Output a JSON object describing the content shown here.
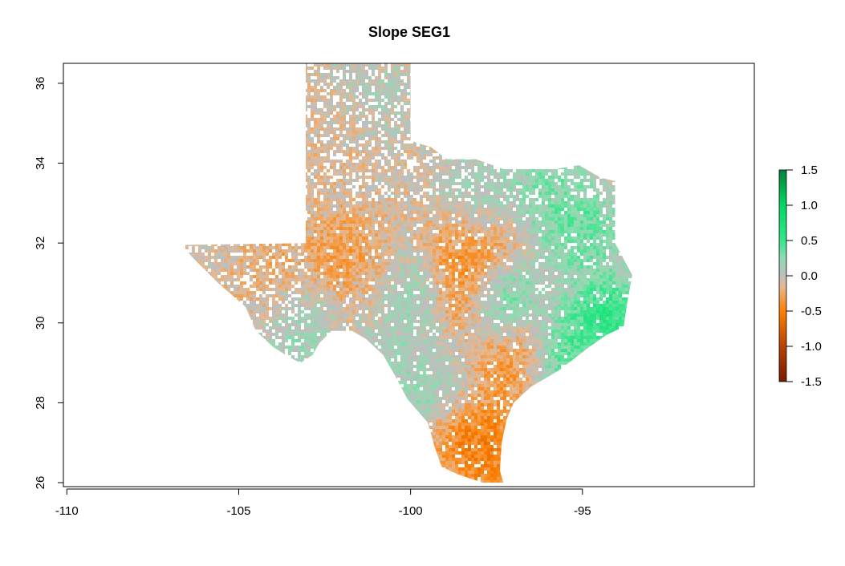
{
  "chart_data": {
    "type": "heatmap",
    "title": "Slope SEG1",
    "xlabel": "",
    "ylabel": "",
    "xlim": [
      -110.1,
      -90.0
    ],
    "ylim": [
      25.9,
      36.5
    ],
    "x_ticks": [
      -110,
      -105,
      -100,
      -95
    ],
    "x_tick_labels": [
      "-110",
      "-105",
      "-100",
      "-95"
    ],
    "y_ticks": [
      26,
      28,
      30,
      32,
      34,
      36
    ],
    "y_tick_labels": [
      "26",
      "28",
      "30",
      "32",
      "34",
      "36"
    ],
    "grid": false,
    "legend": {
      "placement": "right",
      "range": [
        -1.5,
        1.5
      ],
      "ticks": [
        1.5,
        1.0,
        0.5,
        0.0,
        -0.5,
        -1.0,
        -1.5
      ],
      "tick_labels": [
        "1.5",
        "1.0",
        "0.5",
        "0.0",
        "-0.5",
        "-1.0",
        "-1.5"
      ],
      "stops": [
        {
          "value": -1.5,
          "color": "#7a1a00"
        },
        {
          "value": -1.0,
          "color": "#b84300"
        },
        {
          "value": -0.5,
          "color": "#ff7f00"
        },
        {
          "value": -0.15,
          "color": "#e7b88f"
        },
        {
          "value": 0.0,
          "color": "#bebebe"
        },
        {
          "value": 0.25,
          "color": "#8fdcb0"
        },
        {
          "value": 0.5,
          "color": "#33e68a"
        },
        {
          "value": 1.0,
          "color": "#00d964"
        },
        {
          "value": 1.5,
          "color": "#00803a"
        }
      ]
    },
    "region_outline": [
      [
        -103.05,
        36.5
      ],
      [
        -100.0,
        36.5
      ],
      [
        -100.0,
        34.56
      ],
      [
        -99.4,
        34.4
      ],
      [
        -98.95,
        34.1
      ],
      [
        -98.1,
        34.1
      ],
      [
        -97.3,
        33.85
      ],
      [
        -96.6,
        33.85
      ],
      [
        -95.8,
        33.85
      ],
      [
        -95.1,
        33.95
      ],
      [
        -94.48,
        33.64
      ],
      [
        -94.05,
        33.55
      ],
      [
        -94.05,
        32.0
      ],
      [
        -93.8,
        31.6
      ],
      [
        -93.55,
        31.2
      ],
      [
        -93.7,
        30.5
      ],
      [
        -93.8,
        29.9
      ],
      [
        -94.3,
        29.7
      ],
      [
        -94.8,
        29.4
      ],
      [
        -95.7,
        28.8
      ],
      [
        -96.5,
        28.4
      ],
      [
        -97.0,
        28.0
      ],
      [
        -97.2,
        27.6
      ],
      [
        -97.35,
        27.0
      ],
      [
        -97.4,
        26.3
      ],
      [
        -97.3,
        26.0
      ],
      [
        -97.9,
        26.0
      ],
      [
        -98.6,
        26.2
      ],
      [
        -99.1,
        26.4
      ],
      [
        -99.3,
        26.9
      ],
      [
        -99.5,
        27.5
      ],
      [
        -100.1,
        28.1
      ],
      [
        -100.4,
        28.6
      ],
      [
        -100.8,
        29.2
      ],
      [
        -101.3,
        29.6
      ],
      [
        -101.7,
        29.8
      ],
      [
        -102.3,
        29.8
      ],
      [
        -102.65,
        29.5
      ],
      [
        -102.85,
        29.2
      ],
      [
        -103.2,
        29.0
      ],
      [
        -103.55,
        29.15
      ],
      [
        -104.0,
        29.4
      ],
      [
        -104.5,
        29.8
      ],
      [
        -104.8,
        30.4
      ],
      [
        -105.6,
        31.0
      ],
      [
        -106.3,
        31.6
      ],
      [
        -106.65,
        31.95
      ],
      [
        -103.05,
        32.0
      ],
      [
        -103.05,
        36.5
      ]
    ],
    "slope_hotspots": [
      {
        "lon": -98.0,
        "lat": 26.9,
        "value": -0.65
      },
      {
        "lon": -98.6,
        "lat": 30.7,
        "value": -0.6
      },
      {
        "lon": -98.1,
        "lat": 32.0,
        "value": -0.55
      },
      {
        "lon": -97.0,
        "lat": 29.1,
        "value": -0.55
      },
      {
        "lon": -102.0,
        "lat": 31.6,
        "value": -0.4
      },
      {
        "lon": -103.8,
        "lat": 31.0,
        "value": -0.35
      },
      {
        "lon": -99.5,
        "lat": 29.3,
        "value": -0.3
      },
      {
        "lon": -101.8,
        "lat": 35.0,
        "value": -0.2
      },
      {
        "lon": -100.9,
        "lat": 30.3,
        "value": -0.25
      },
      {
        "lon": -95.0,
        "lat": 32.3,
        "value": 0.5
      },
      {
        "lon": -94.3,
        "lat": 30.0,
        "value": 0.8
      },
      {
        "lon": -95.6,
        "lat": 29.0,
        "value": 0.6
      },
      {
        "lon": -99.6,
        "lat": 28.9,
        "value": 0.55
      },
      {
        "lon": -97.4,
        "lat": 30.5,
        "value": 0.55
      },
      {
        "lon": -96.0,
        "lat": 33.3,
        "value": 0.4
      },
      {
        "lon": -99.9,
        "lat": 30.4,
        "value": 0.45
      },
      {
        "lon": -103.3,
        "lat": 30.2,
        "value": 0.35
      },
      {
        "lon": -98.0,
        "lat": 33.0,
        "value": 0.3
      },
      {
        "lon": -100.6,
        "lat": 29.8,
        "value": 0.3
      },
      {
        "lon": -101.3,
        "lat": 35.5,
        "value": 0.2
      }
    ],
    "color_scale": "slope value"
  }
}
